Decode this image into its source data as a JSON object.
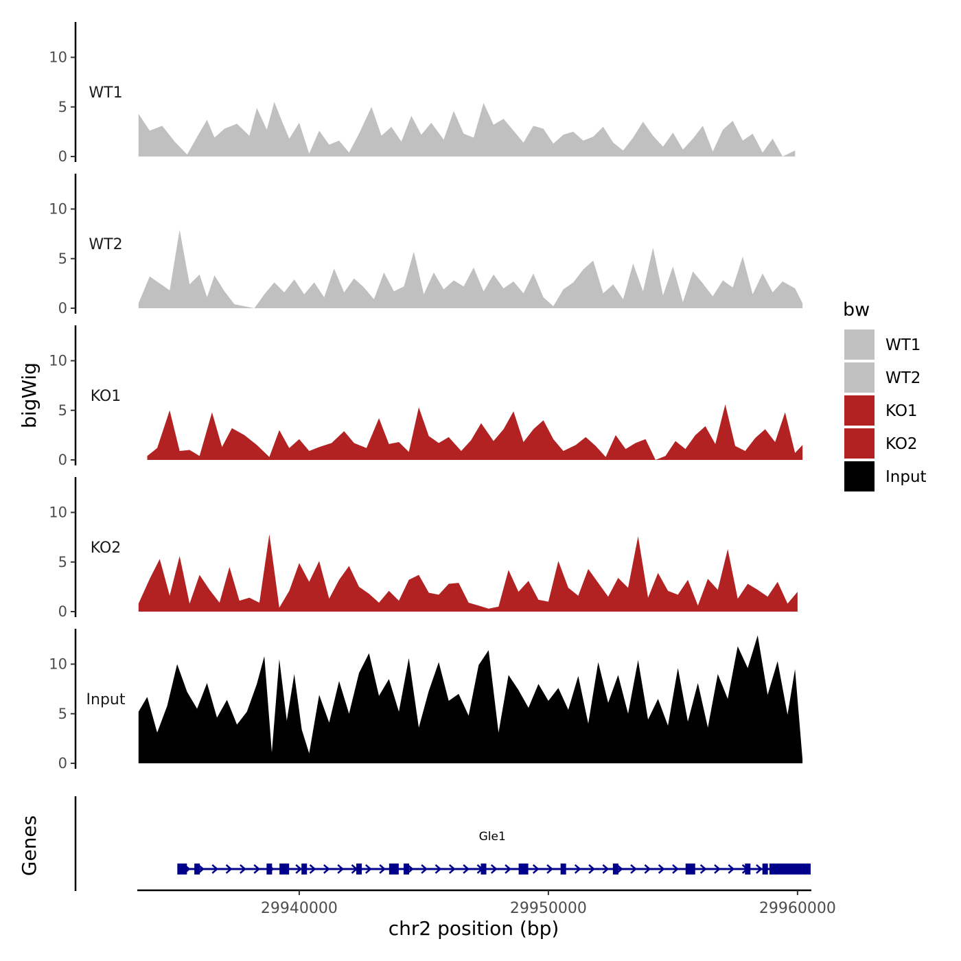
{
  "chart_data": {
    "type": "area",
    "title": "",
    "xlabel": "chr2 position (bp)",
    "ylabel": "bigWig",
    "genes_label": "Genes",
    "xlim": [
      29933500,
      29960500
    ],
    "ylim": [
      0,
      14
    ],
    "y_ticks": [
      0,
      5,
      10
    ],
    "y_tick_labels": [
      "0",
      "5",
      "10"
    ],
    "x_ticks": [
      29940000,
      29950000,
      29960000
    ],
    "x_tick_labels": [
      "29940000",
      "29950000",
      "29960000"
    ],
    "legend": {
      "title": "bw",
      "position": "right",
      "entries": [
        {
          "label": "WT1",
          "color": "#c0c0c0"
        },
        {
          "label": "WT2",
          "color": "#c0c0c0"
        },
        {
          "label": "KO1",
          "color": "#b22222"
        },
        {
          "label": "KO2",
          "color": "#b22222"
        },
        {
          "label": "Input",
          "color": "#000000"
        }
      ]
    },
    "series": [
      {
        "name": "WT1",
        "color": "#c0c0c0",
        "x": [
          29933550,
          29934000,
          29934500,
          29935000,
          29935500,
          29936000,
          29936300,
          29936600,
          29937000,
          29937500,
          29938000,
          29938300,
          29938700,
          29939000,
          29939300,
          29939600,
          29940000,
          29940400,
          29940800,
          29941200,
          29941600,
          29942000,
          29942400,
          29942900,
          29943300,
          29943700,
          29944100,
          29944500,
          29944900,
          29945300,
          29945800,
          29946200,
          29946600,
          29947000,
          29947400,
          29947800,
          29948200,
          29948600,
          29949000,
          29949400,
          29949800,
          29950200,
          29950600,
          29951000,
          29951400,
          29951800,
          29952200,
          29952600,
          29953000,
          29953400,
          29953800,
          29954200,
          29954600,
          29955000,
          29955400,
          29955800,
          29956200,
          29956600,
          29957000,
          29957400,
          29957800,
          29958200,
          29958600,
          29959000,
          29959400,
          29959900
        ],
        "values": [
          4.3,
          2.6,
          3.1,
          1.5,
          0.2,
          2.4,
          3.7,
          1.9,
          2.8,
          3.3,
          2.1,
          4.9,
          2.7,
          5.5,
          3.6,
          1.8,
          3.4,
          0.3,
          2.6,
          1.2,
          1.6,
          0.4,
          2.3,
          5.0,
          2.1,
          3.0,
          1.5,
          4.1,
          2.2,
          3.4,
          1.7,
          4.6,
          2.3,
          1.9,
          5.4,
          3.2,
          3.8,
          2.6,
          1.4,
          3.1,
          2.8,
          1.3,
          2.2,
          2.5,
          1.6,
          2.0,
          3.0,
          1.4,
          0.6,
          1.9,
          3.5,
          2.1,
          1.0,
          2.4,
          0.7,
          1.8,
          3.1,
          0.5,
          2.7,
          3.6,
          1.6,
          2.3,
          0.4,
          1.8,
          0.0,
          0.6
        ]
      },
      {
        "name": "WT2",
        "color": "#c0c0c0",
        "x": [
          29933550,
          29934000,
          29934400,
          29934800,
          29935200,
          29935600,
          29936000,
          29936300,
          29936600,
          29937000,
          29937400,
          29937800,
          29938200,
          29938600,
          29939000,
          29939400,
          29939800,
          29940200,
          29940600,
          29941000,
          29941400,
          29941800,
          29942200,
          29942600,
          29943000,
          29943400,
          29943800,
          29944200,
          29944600,
          29945000,
          29945400,
          29945800,
          29946200,
          29946600,
          29947000,
          29947400,
          29947800,
          29948200,
          29948600,
          29949000,
          29949400,
          29949800,
          29950200,
          29950600,
          29951000,
          29951400,
          29951800,
          29952200,
          29952600,
          29953000,
          29953400,
          29953800,
          29954200,
          29954600,
          29955000,
          29955400,
          29955800,
          29956200,
          29956600,
          29957000,
          29957400,
          29957800,
          29958200,
          29958600,
          29959000,
          29959400,
          29959900,
          29960200
        ],
        "values": [
          0.5,
          3.2,
          2.5,
          1.8,
          7.9,
          2.4,
          3.4,
          1.1,
          3.3,
          1.7,
          0.4,
          0.2,
          0.0,
          1.4,
          2.6,
          1.6,
          2.9,
          1.4,
          2.6,
          1.1,
          4.0,
          1.6,
          3.0,
          2.1,
          0.9,
          3.6,
          1.7,
          2.2,
          5.7,
          1.4,
          3.6,
          1.9,
          2.8,
          2.2,
          4.1,
          1.7,
          3.4,
          2.0,
          2.7,
          1.5,
          3.5,
          1.1,
          0.2,
          1.9,
          2.6,
          3.9,
          4.8,
          1.5,
          2.4,
          0.9,
          4.5,
          1.7,
          6.1,
          1.3,
          4.2,
          0.6,
          3.7,
          2.5,
          1.2,
          2.8,
          2.1,
          5.2,
          1.4,
          3.5,
          1.6,
          2.7,
          2.0,
          0.5
        ]
      },
      {
        "name": "KO1",
        "color": "#b22222",
        "x": [
          29933900,
          29934300,
          29934800,
          29935200,
          29935600,
          29936000,
          29936500,
          29936900,
          29937300,
          29937800,
          29938300,
          29938800,
          29939200,
          29939600,
          29940000,
          29940400,
          29940800,
          29941300,
          29941800,
          29942200,
          29942700,
          29943200,
          29943600,
          29944000,
          29944400,
          29944800,
          29945200,
          29945600,
          29946000,
          29946500,
          29946900,
          29947300,
          29947800,
          29948200,
          29948600,
          29949000,
          29949400,
          29949800,
          29950200,
          29950600,
          29951100,
          29951500,
          29951900,
          29952300,
          29952700,
          29953100,
          29953500,
          29953900,
          29954300,
          29954700,
          29955100,
          29955500,
          29955900,
          29956300,
          29956700,
          29957100,
          29957500,
          29957900,
          29958300,
          29958700,
          29959100,
          29959500,
          29959900,
          29960200
        ],
        "values": [
          0.4,
          1.2,
          5.0,
          0.9,
          1.0,
          0.4,
          4.8,
          1.3,
          3.2,
          2.5,
          1.5,
          0.3,
          3.0,
          1.2,
          2.1,
          0.9,
          1.3,
          1.7,
          2.9,
          1.7,
          1.2,
          4.2,
          1.6,
          1.8,
          0.8,
          5.3,
          2.4,
          1.7,
          2.3,
          0.9,
          2.0,
          3.7,
          1.9,
          3.1,
          4.9,
          1.8,
          3.1,
          4.0,
          2.1,
          0.9,
          1.5,
          2.3,
          1.4,
          0.3,
          2.5,
          1.1,
          1.7,
          2.1,
          0.0,
          0.4,
          1.9,
          1.1,
          2.5,
          3.4,
          1.6,
          5.6,
          1.4,
          0.9,
          2.2,
          3.1,
          1.8,
          4.8,
          0.7,
          1.5
        ]
      },
      {
        "name": "KO2",
        "color": "#b22222",
        "x": [
          29933550,
          29934000,
          29934400,
          29934800,
          29935200,
          29935600,
          29936000,
          29936400,
          29936800,
          29937200,
          29937600,
          29938000,
          29938400,
          29938800,
          29939200,
          29939600,
          29940000,
          29940400,
          29940800,
          29941200,
          29941600,
          29942000,
          29942400,
          29942800,
          29943200,
          29943600,
          29944000,
          29944400,
          29944800,
          29945200,
          29945600,
          29946000,
          29946400,
          29946800,
          29947200,
          29947600,
          29948000,
          29948400,
          29948800,
          29949200,
          29949600,
          29950000,
          29950400,
          29950800,
          29951200,
          29951600,
          29952000,
          29952400,
          29952800,
          29953200,
          29953600,
          29954000,
          29954400,
          29954800,
          29955200,
          29955600,
          29956000,
          29956400,
          29956800,
          29957200,
          29957600,
          29958000,
          29958400,
          29958800,
          29959200,
          29959600,
          29960000
        ],
        "values": [
          0.8,
          3.3,
          5.3,
          1.6,
          5.6,
          0.8,
          3.7,
          2.2,
          0.9,
          4.5,
          1.1,
          1.4,
          0.9,
          7.8,
          0.4,
          2.1,
          4.9,
          3.0,
          5.1,
          1.3,
          3.2,
          4.6,
          2.5,
          1.8,
          0.9,
          2.1,
          1.1,
          3.2,
          3.7,
          1.9,
          1.7,
          2.8,
          2.9,
          0.9,
          0.6,
          0.3,
          0.5,
          4.2,
          2.0,
          3.1,
          1.2,
          1.0,
          5.1,
          2.4,
          1.6,
          4.3,
          2.9,
          1.5,
          3.4,
          2.4,
          7.6,
          1.4,
          3.9,
          2.1,
          1.7,
          3.2,
          0.6,
          3.3,
          2.2,
          6.3,
          1.3,
          2.8,
          2.2,
          1.5,
          3.0,
          0.8,
          2.0
        ]
      },
      {
        "name": "Input",
        "color": "#000000",
        "x": [
          29933550,
          29933900,
          29934300,
          29934700,
          29935100,
          29935500,
          29935900,
          29936300,
          29936700,
          29937100,
          29937500,
          29937900,
          29938300,
          29938600,
          29938900,
          29939200,
          29939500,
          29939800,
          29940100,
          29940400,
          29940800,
          29941200,
          29941600,
          29942000,
          29942400,
          29942800,
          29943200,
          29943600,
          29944000,
          29944400,
          29944800,
          29945200,
          29945600,
          29946000,
          29946400,
          29946800,
          29947200,
          29947600,
          29948000,
          29948400,
          29948800,
          29949200,
          29949600,
          29950000,
          29950400,
          29950800,
          29951200,
          29951600,
          29952000,
          29952400,
          29952800,
          29953200,
          29953600,
          29954000,
          29954400,
          29954800,
          29955200,
          29955600,
          29956000,
          29956400,
          29956800,
          29957200,
          29957600,
          29958000,
          29958400,
          29958800,
          29959200,
          29959600,
          29959900,
          29960200
        ],
        "values": [
          5.2,
          6.7,
          3.1,
          5.8,
          10.0,
          7.2,
          5.5,
          8.1,
          4.6,
          6.4,
          3.9,
          5.2,
          8.0,
          10.8,
          1.1,
          10.5,
          4.3,
          9.0,
          3.4,
          1.0,
          6.9,
          4.1,
          8.3,
          5.0,
          9.1,
          11.1,
          6.8,
          8.5,
          5.2,
          10.6,
          3.6,
          7.3,
          10.2,
          6.3,
          7.0,
          4.8,
          9.9,
          11.4,
          3.1,
          8.9,
          7.4,
          5.6,
          8.0,
          6.3,
          7.6,
          5.4,
          8.8,
          4.0,
          10.2,
          6.1,
          8.9,
          5.0,
          10.4,
          4.4,
          6.5,
          3.8,
          9.6,
          4.2,
          8.1,
          3.6,
          9.0,
          6.5,
          11.8,
          9.6,
          12.9,
          6.9,
          10.3,
          4.9,
          9.5,
          0.4
        ]
      }
    ],
    "genes": [
      {
        "name": "Gle1",
        "start": 29935200,
        "end": 29960300,
        "strand": "+",
        "exons": [
          29935300,
          29935900,
          29938800,
          29939400,
          29940200,
          29942400,
          29943800,
          29944300,
          29947400,
          29949000,
          29950600,
          29952700,
          29955700,
          29958000,
          29958700,
          29959200,
          29959700
        ]
      }
    ]
  }
}
